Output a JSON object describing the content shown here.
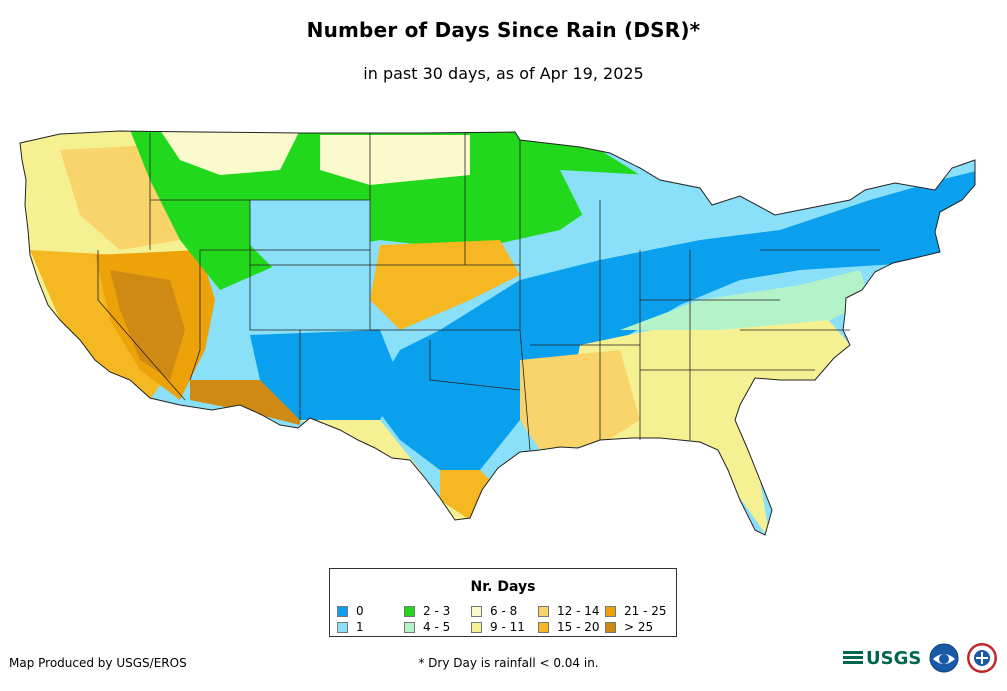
{
  "title": "Number of Days Since Rain (DSR)*",
  "subtitle": "in past 30 days, as of Apr 19, 2025",
  "legend": {
    "title": "Nr. Days",
    "items": [
      {
        "label": "0",
        "color": "#0aa0ee"
      },
      {
        "label": "1",
        "color": "#8ae0f8"
      },
      {
        "label": "2 - 3",
        "color": "#22d81c"
      },
      {
        "label": "4 - 5",
        "color": "#b4f2c8"
      },
      {
        "label": "6 - 8",
        "color": "#fafacc"
      },
      {
        "label": "9 - 11",
        "color": "#f5f091"
      },
      {
        "label": "12 - 14",
        "color": "#f8d46a"
      },
      {
        "label": "15 - 20",
        "color": "#f5b823"
      },
      {
        "label": "21 - 25",
        "color": "#eda20a"
      },
      {
        "label": "> 25",
        "color": "#cf8a14"
      }
    ]
  },
  "credit": "Map Produced by USGS/EROS",
  "footnote": "* Dry Day is rainfall < 0.04 in.",
  "logos": {
    "usgs": "USGS",
    "usgs_icon": "usgs-logo-icon",
    "noaa_icon": "noaa-logo-icon",
    "nws_icon": "nws-logo-icon"
  },
  "colors": {
    "outline": "#222222",
    "background": "#ffffff"
  }
}
